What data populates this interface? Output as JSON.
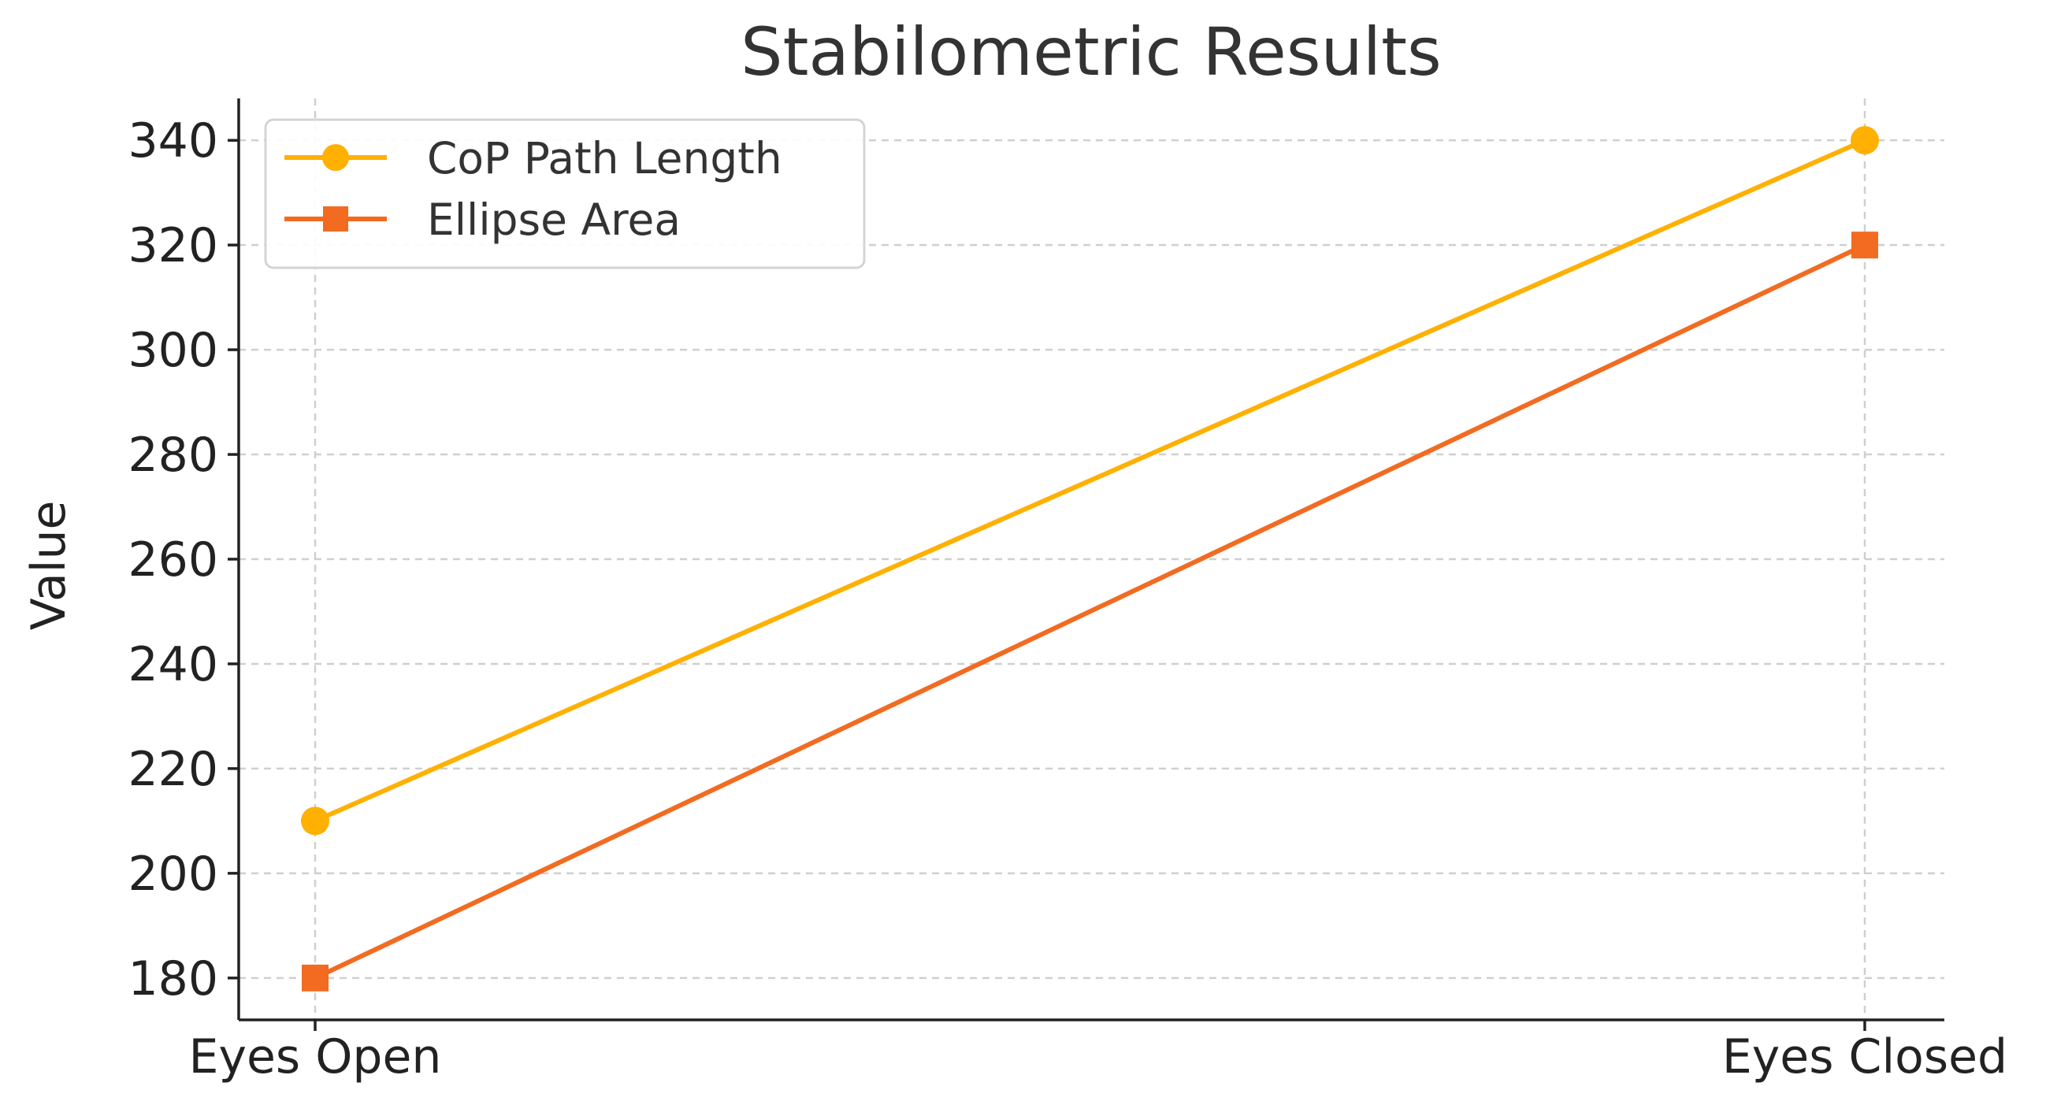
{
  "chart_data": {
    "type": "line",
    "title": "Stabilometric Results",
    "xlabel": "",
    "ylabel": "Value",
    "categories": [
      "Eyes Open",
      "Eyes Closed"
    ],
    "series": [
      {
        "name": "CoP Path Length",
        "values": [
          210,
          340
        ],
        "color": "#FFB000",
        "marker": "circle"
      },
      {
        "name": "Ellipse Area",
        "values": [
          180,
          320
        ],
        "color": "#F26B21",
        "marker": "square"
      }
    ],
    "yticks": [
      180,
      200,
      220,
      240,
      260,
      280,
      300,
      320,
      340
    ],
    "ylim": [
      172,
      348
    ],
    "grid": true,
    "legend_position": "top-left"
  }
}
